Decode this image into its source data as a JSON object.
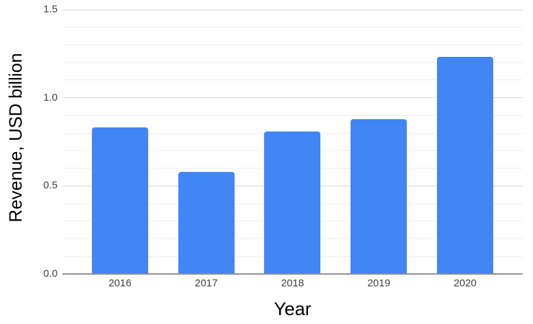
{
  "chart_data": {
    "type": "bar",
    "title": "",
    "categories": [
      "2016",
      "2017",
      "2018",
      "2019",
      "2020"
    ],
    "values": [
      0.83,
      0.58,
      0.81,
      0.88,
      1.23
    ],
    "xlabel": "Year",
    "ylabel": "Revenue, USD billion",
    "ylim": [
      0,
      1.5
    ],
    "yticks": [
      0.0,
      0.5,
      1.0,
      1.5
    ],
    "ytick_labels": [
      "0.0",
      "0.5",
      "1.0",
      "1.5"
    ],
    "minor_grid_step": 0.1,
    "major_grid_step": 0.5,
    "legend_position": "none",
    "grid": true,
    "colors": {
      "bar": "#4285f4",
      "grid_minor": "#ededed",
      "grid_major": "#d9d9d9",
      "axis_line": "#909090",
      "tick_label": "#3f3f3f",
      "axis_title": "#000000",
      "background": "#ffffff"
    }
  }
}
